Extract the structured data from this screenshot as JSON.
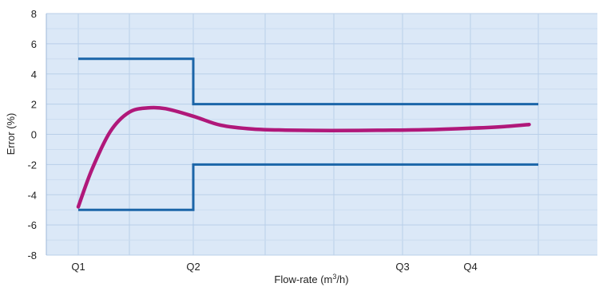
{
  "chart_data": {
    "type": "line",
    "title": "",
    "xlabel": "Flow-rate (m³/h)",
    "xlabel_base": "Flow-rate (m",
    "xlabel_sup": "3",
    "xlabel_end": "/h)",
    "ylabel": "Error (%)",
    "ylim": [
      -8,
      8
    ],
    "y_ticks": [
      "8",
      "6",
      "4",
      "2",
      "0",
      "-2",
      "-4",
      "-6",
      "-8"
    ],
    "x_tick_labels": [
      "Q1",
      "Q2",
      "Q3",
      "Q4"
    ],
    "grid": true,
    "legend": "none",
    "series": [
      {
        "role": "upper-limit",
        "color": "#1b65a8",
        "points": [
          [
            "Q1",
            5
          ],
          [
            "Q2",
            5
          ],
          [
            "Q2",
            2
          ],
          [
            "end",
            2
          ]
        ]
      },
      {
        "role": "lower-limit",
        "color": "#1b65a8",
        "points": [
          [
            "Q1",
            -5
          ],
          [
            "Q2",
            -5
          ],
          [
            "Q2",
            -2
          ],
          [
            "end",
            -2
          ]
        ]
      },
      {
        "role": "error-curve",
        "color": "#b0187a",
        "x_fraction_of_Q1_to_end": [
          0,
          0.03,
          0.07,
          0.11,
          0.15,
          0.19,
          0.25,
          0.31,
          0.38,
          0.45,
          0.55,
          0.65,
          0.75,
          0.85,
          0.92,
          0.98
        ],
        "values": [
          -4.8,
          -2.3,
          0.2,
          1.45,
          1.75,
          1.7,
          1.2,
          0.6,
          0.35,
          0.28,
          0.25,
          0.27,
          0.3,
          0.4,
          0.5,
          0.65
        ]
      }
    ]
  }
}
